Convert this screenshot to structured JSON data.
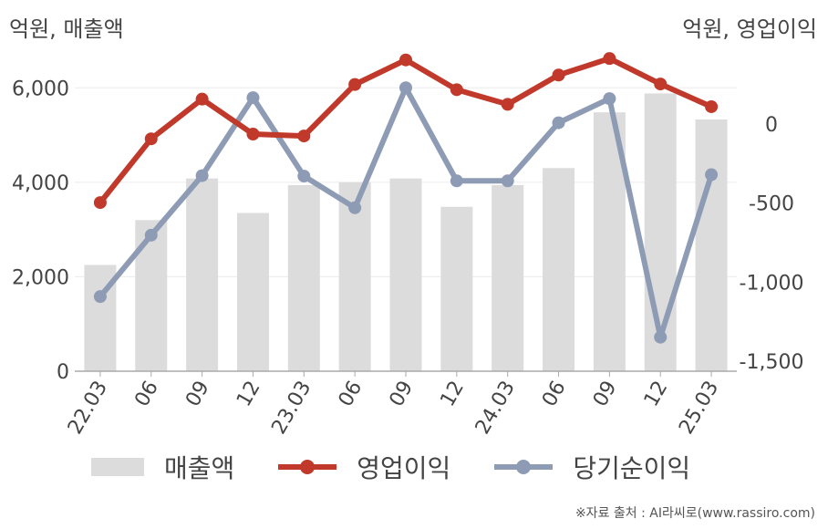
{
  "units": {
    "left": "억원, 매출액",
    "right": "억원, 영업이익"
  },
  "source": "※자료 출처 : AI라씨로(www.rassiro.com)",
  "chart_data": {
    "type": "bar+line",
    "categories": [
      "22.03",
      "06",
      "09",
      "12",
      "23.03",
      "06",
      "09",
      "12",
      "24.03",
      "06",
      "09",
      "12",
      "25.03"
    ],
    "y_left": {
      "ticks": [
        "0",
        "2,000",
        "4,000",
        "6,000"
      ],
      "tick_values": [
        0,
        2000,
        4000,
        6000
      ],
      "range": [
        0,
        6700
      ]
    },
    "y_right": {
      "ticks": [
        "0",
        "-500",
        "-1,000",
        "-1,500"
      ],
      "tick_values": [
        0,
        -500,
        -1000,
        -1500
      ],
      "range": [
        -1500,
        0
      ]
    },
    "series": [
      {
        "name": "매출액",
        "axis": "left",
        "kind": "bar",
        "color": "#dcdcdc",
        "values": [
          2250,
          3200,
          4080,
          3350,
          3940,
          4000,
          4080,
          3480,
          3940,
          4300,
          5480,
          5880,
          5330
        ]
      },
      {
        "name": "영업이익",
        "axis": "left",
        "kind": "line",
        "color": "#c0392b",
        "values": [
          3570,
          4920,
          5760,
          5020,
          4980,
          6070,
          6590,
          5960,
          5650,
          6270,
          6620,
          6080,
          5600
        ]
      },
      {
        "name": "당기순이익",
        "axis": "left",
        "kind": "line",
        "color": "#8e9bb5",
        "values": [
          1580,
          2880,
          4140,
          5790,
          4130,
          3460,
          6000,
          4030,
          4030,
          5260,
          5770,
          720,
          4160
        ]
      }
    ]
  }
}
